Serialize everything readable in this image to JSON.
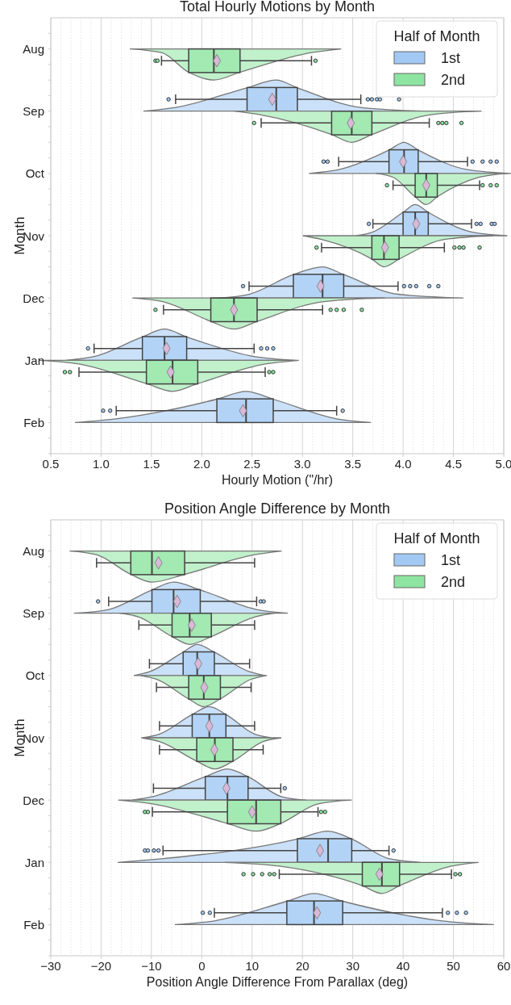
{
  "chart_data": [
    {
      "type": "box",
      "title": "Total Hourly Motions by Month",
      "xlabel": "Hourly Motion (\"/hr)",
      "ylabel": "Month",
      "legend_title": "Half of Month",
      "legend": "top right",
      "grid": "x",
      "orientation": "horizontal",
      "categories": [
        "Aug",
        "Sep",
        "Oct",
        "Nov",
        "Dec",
        "Jan",
        "Feb"
      ],
      "xlim": [
        0.5,
        5.0
      ],
      "xticks": [
        {
          "value": 0.5,
          "label": "0.5"
        },
        {
          "value": 1.0,
          "label": "1.0"
        },
        {
          "value": 1.5,
          "label": "1.5"
        },
        {
          "value": 2.0,
          "label": "2.0"
        },
        {
          "value": 2.5,
          "label": "2.5"
        },
        {
          "value": 3.0,
          "label": "3.0"
        },
        {
          "value": 3.5,
          "label": "3.5"
        },
        {
          "value": 4.0,
          "label": "4.0"
        },
        {
          "value": 4.5,
          "label": "4.5"
        },
        {
          "value": 5.0,
          "label": "5.0"
        }
      ],
      "marker": "diamond",
      "series": [
        {
          "name": "1st",
          "color": "#a1c9f4",
          "boxes": [
            null,
            {
              "low": 1.74,
              "q1": 2.45,
              "median": 2.74,
              "q3": 2.95,
              "high": 3.58,
              "mean": 2.7,
              "outliers": [
                1.67,
                3.65,
                3.69,
                3.74,
                3.77,
                3.96
              ]
            },
            {
              "low": 3.36,
              "q1": 3.86,
              "median": 4.01,
              "q3": 4.15,
              "high": 4.64,
              "mean": 4.0,
              "outliers": [
                3.21,
                3.25,
                4.69,
                4.79,
                4.87,
                4.93
              ]
            },
            {
              "low": 3.7,
              "q1": 4.0,
              "median": 4.12,
              "q3": 4.25,
              "high": 4.68,
              "mean": 4.13,
              "outliers": [
                3.66,
                4.73,
                4.77,
                4.88,
                4.91
              ]
            },
            {
              "low": 2.47,
              "q1": 2.91,
              "median": 3.2,
              "q3": 3.41,
              "high": 3.95,
              "mean": 3.18,
              "outliers": [
                2.41,
                4.01,
                4.07,
                4.13,
                4.26,
                4.35
              ]
            },
            {
              "low": 0.93,
              "q1": 1.41,
              "median": 1.63,
              "q3": 1.85,
              "high": 2.52,
              "mean": 1.65,
              "outliers": [
                0.87,
                2.59,
                2.65,
                2.71
              ]
            },
            {
              "low": 1.15,
              "q1": 2.15,
              "median": 2.44,
              "q3": 2.71,
              "high": 3.34,
              "mean": 2.41,
              "outliers": [
                1.02,
                1.09,
                3.4
              ]
            }
          ]
        },
        {
          "name": "2nd",
          "color": "#8de5a1",
          "boxes": [
            {
              "low": 1.6,
              "q1": 1.87,
              "median": 2.12,
              "q3": 2.38,
              "high": 3.09,
              "mean": 2.15,
              "outliers": [
                1.54,
                1.56,
                3.13
              ]
            },
            {
              "low": 2.59,
              "q1": 3.29,
              "median": 3.49,
              "q3": 3.69,
              "high": 4.26,
              "mean": 3.48,
              "outliers": [
                2.52,
                4.35,
                4.39,
                4.43,
                4.58
              ]
            },
            {
              "low": 3.9,
              "q1": 4.12,
              "median": 4.23,
              "q3": 4.34,
              "high": 4.76,
              "mean": 4.23,
              "outliers": [
                3.84,
                4.79,
                4.87,
                4.93
              ]
            },
            {
              "low": 3.19,
              "q1": 3.69,
              "median": 3.81,
              "q3": 3.96,
              "high": 4.41,
              "mean": 3.82,
              "outliers": [
                3.14,
                4.51,
                4.56,
                4.6,
                4.76
              ]
            },
            {
              "low": 1.62,
              "q1": 2.09,
              "median": 2.32,
              "q3": 2.55,
              "high": 3.2,
              "mean": 2.32,
              "outliers": [
                1.54,
                3.28,
                3.34,
                3.41,
                3.59
              ]
            },
            {
              "low": 0.78,
              "q1": 1.45,
              "median": 1.71,
              "q3": 1.96,
              "high": 2.63,
              "mean": 1.69,
              "outliers": [
                0.64,
                0.69,
                2.67,
                2.71
              ]
            },
            null
          ]
        }
      ]
    },
    {
      "type": "box",
      "title": "Position Angle Difference by Month",
      "xlabel": "Position Angle Difference From Parallax (deg)",
      "ylabel": "Month",
      "legend_title": "Half of Month",
      "legend": "top right",
      "grid": "x",
      "orientation": "horizontal",
      "categories": [
        "Aug",
        "Sep",
        "Oct",
        "Nov",
        "Dec",
        "Jan",
        "Feb"
      ],
      "xlim": [
        -30,
        60
      ],
      "xticks": [
        {
          "value": -30,
          "label": "−30"
        },
        {
          "value": -20,
          "label": "−20"
        },
        {
          "value": -10,
          "label": "−10"
        },
        0,
        10,
        20,
        30,
        40,
        50,
        60
      ],
      "marker": "diamond",
      "series": [
        {
          "name": "1st",
          "color": "#a1c9f4",
          "boxes": [
            null,
            {
              "low": -18.5,
              "q1": -9.9,
              "median": -5.6,
              "q3": -0.3,
              "high": 10.9,
              "mean": -4.9,
              "outliers": [
                -20.6,
                11.7,
                12.3
              ]
            },
            {
              "low": -10.4,
              "q1": -3.7,
              "median": -0.9,
              "q3": 2.5,
              "high": 9.5,
              "mean": -0.7
            },
            {
              "low": -8.4,
              "q1": -1.9,
              "median": 1.5,
              "q3": 4.8,
              "high": 10.5,
              "mean": 1.5
            },
            {
              "low": -9.6,
              "q1": 0.7,
              "median": 5.1,
              "q3": 9.2,
              "high": 15.7,
              "mean": 4.9,
              "outliers": [
                16.5
              ]
            },
            {
              "low": -7.7,
              "q1": 19.0,
              "median": 25.1,
              "q3": 29.8,
              "high": 37.2,
              "mean": 23.5,
              "outliers": [
                -11.3,
                -10.7,
                -9.5,
                -8.6,
                38.1
              ]
            },
            {
              "low": 2.5,
              "q1": 16.9,
              "median": 22.3,
              "q3": 28.0,
              "high": 47.8,
              "mean": 22.9,
              "outliers": [
                0.2,
                1.6,
                48.9,
                50.7,
                52.5
              ]
            }
          ]
        },
        {
          "name": "2nd",
          "color": "#8de5a1",
          "boxes": [
            {
              "low": -20.9,
              "q1": -14.1,
              "median": -9.9,
              "q3": -3.4,
              "high": 10.5,
              "mean": -8.6
            },
            {
              "low": -12.5,
              "q1": -5.9,
              "median": -2.4,
              "q3": 1.9,
              "high": 10.5,
              "mean": -2.0
            },
            {
              "low": -9.0,
              "q1": -2.6,
              "median": 0.4,
              "q3": 3.7,
              "high": 9.8,
              "mean": 0.5
            },
            {
              "low": -8.4,
              "q1": -1.0,
              "median": 2.6,
              "q3": 6.2,
              "high": 12.2,
              "mean": 2.5
            },
            {
              "low": -9.8,
              "q1": 5.1,
              "median": 10.8,
              "q3": 15.7,
              "high": 23.1,
              "mean": 10.0,
              "outliers": [
                -11.3,
                -10.7,
                23.7,
                24.5
              ]
            },
            {
              "low": 15.4,
              "q1": 31.9,
              "median": 35.8,
              "q3": 39.3,
              "high": 49.6,
              "mean": 35.3,
              "outliers": [
                8.3,
                10.2,
                12.0,
                13.5,
                14.4,
                50.4,
                51.3
              ]
            },
            null
          ]
        }
      ]
    }
  ]
}
